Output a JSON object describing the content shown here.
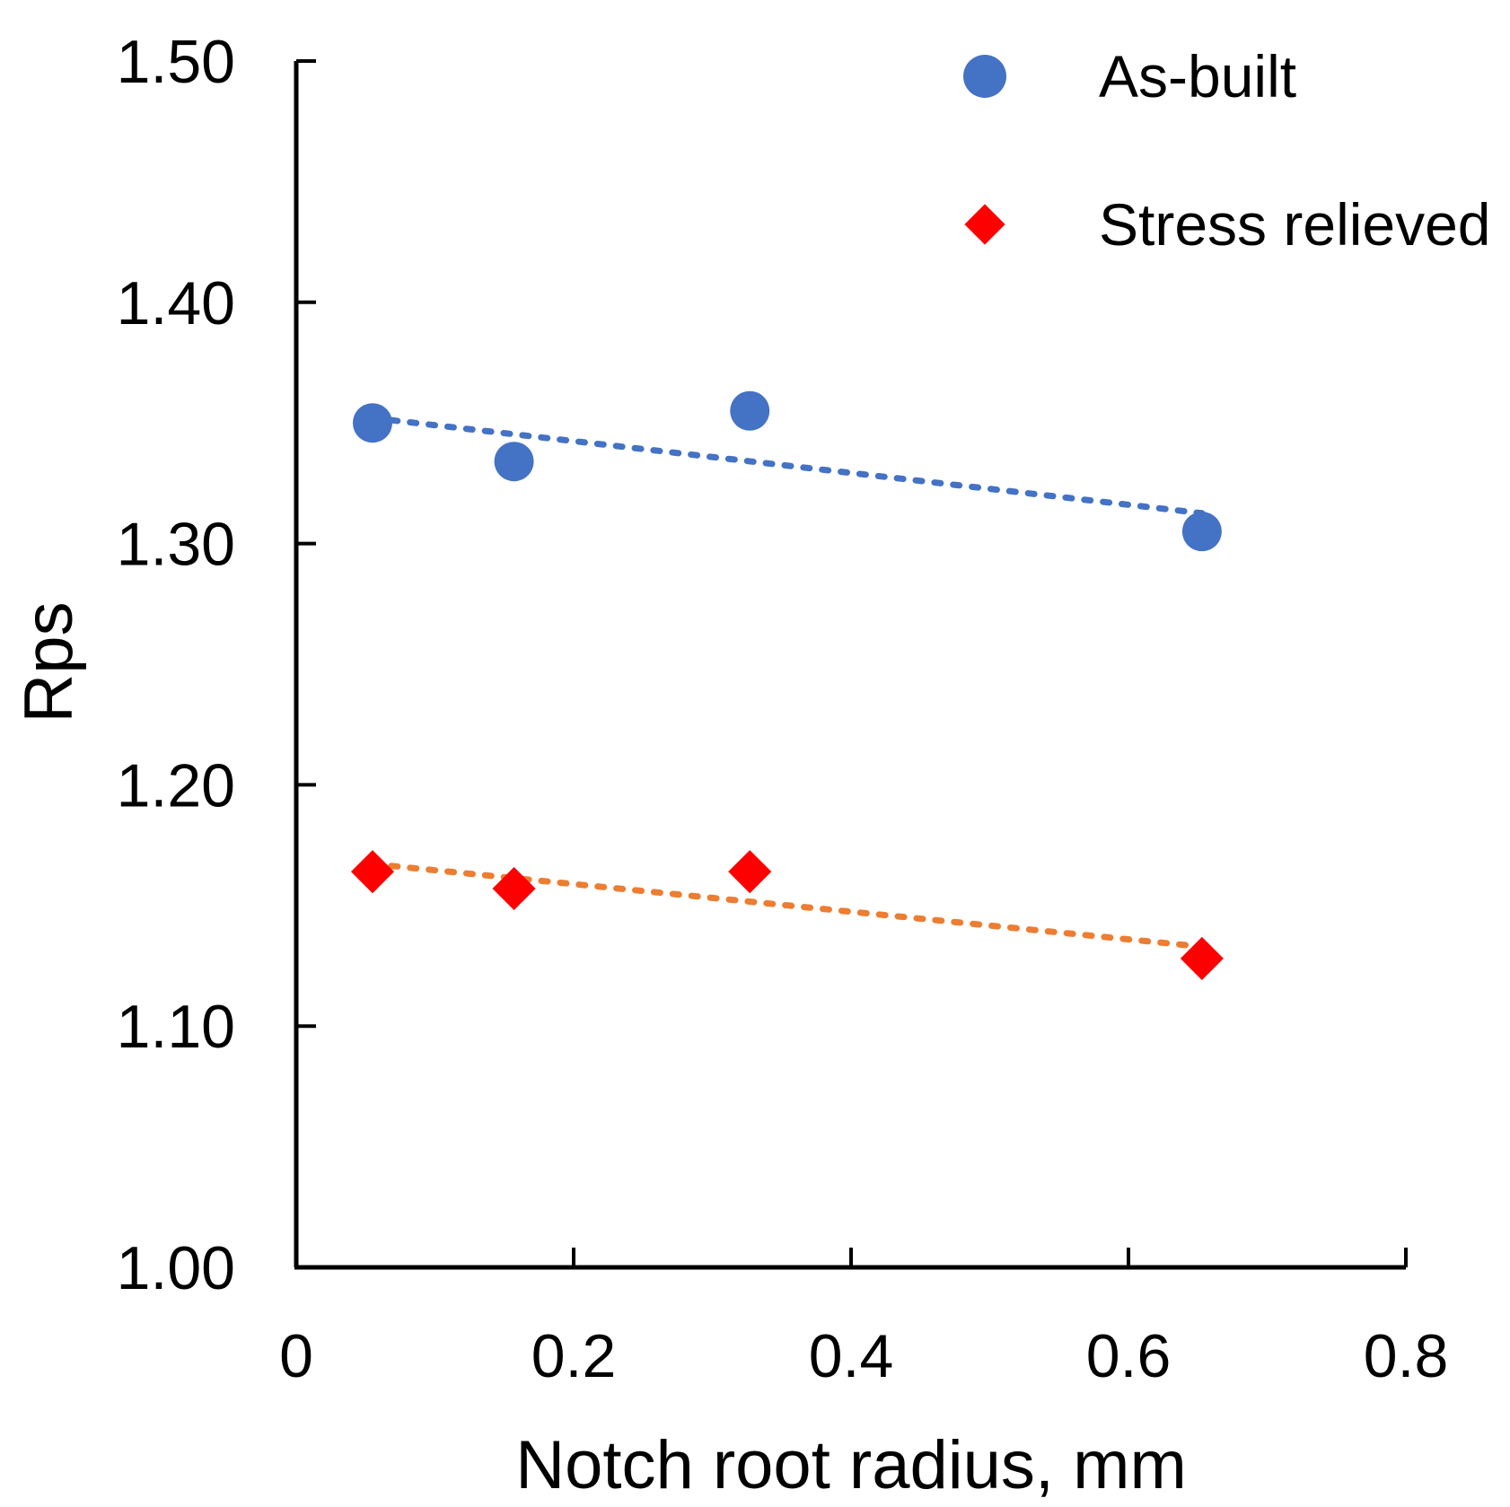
{
  "chart_data": {
    "type": "scatter",
    "title": "",
    "xlabel": "Notch root radius, mm",
    "ylabel": "Rps",
    "xlim": [
      0,
      0.8
    ],
    "ylim": [
      1.0,
      1.5
    ],
    "xticks": [
      "0",
      "0.2",
      "0.4",
      "0.6",
      "0.8"
    ],
    "yticks": [
      "1.00",
      "1.10",
      "1.20",
      "1.30",
      "1.40",
      "1.50"
    ],
    "grid": false,
    "legend_position": "top-right",
    "series": [
      {
        "name": "As-built",
        "marker": "circle",
        "color": "#4472C4",
        "trendline_color": "#4472C4",
        "x": [
          0.055,
          0.157,
          0.327,
          0.653
        ],
        "y": [
          1.35,
          1.334,
          1.355,
          1.305
        ]
      },
      {
        "name": "Stress relieved",
        "marker": "diamond",
        "color": "#FF0000",
        "trendline_color": "#ED7D31",
        "x": [
          0.055,
          0.157,
          0.327,
          0.653
        ],
        "y": [
          1.164,
          1.157,
          1.164,
          1.128
        ]
      }
    ]
  }
}
